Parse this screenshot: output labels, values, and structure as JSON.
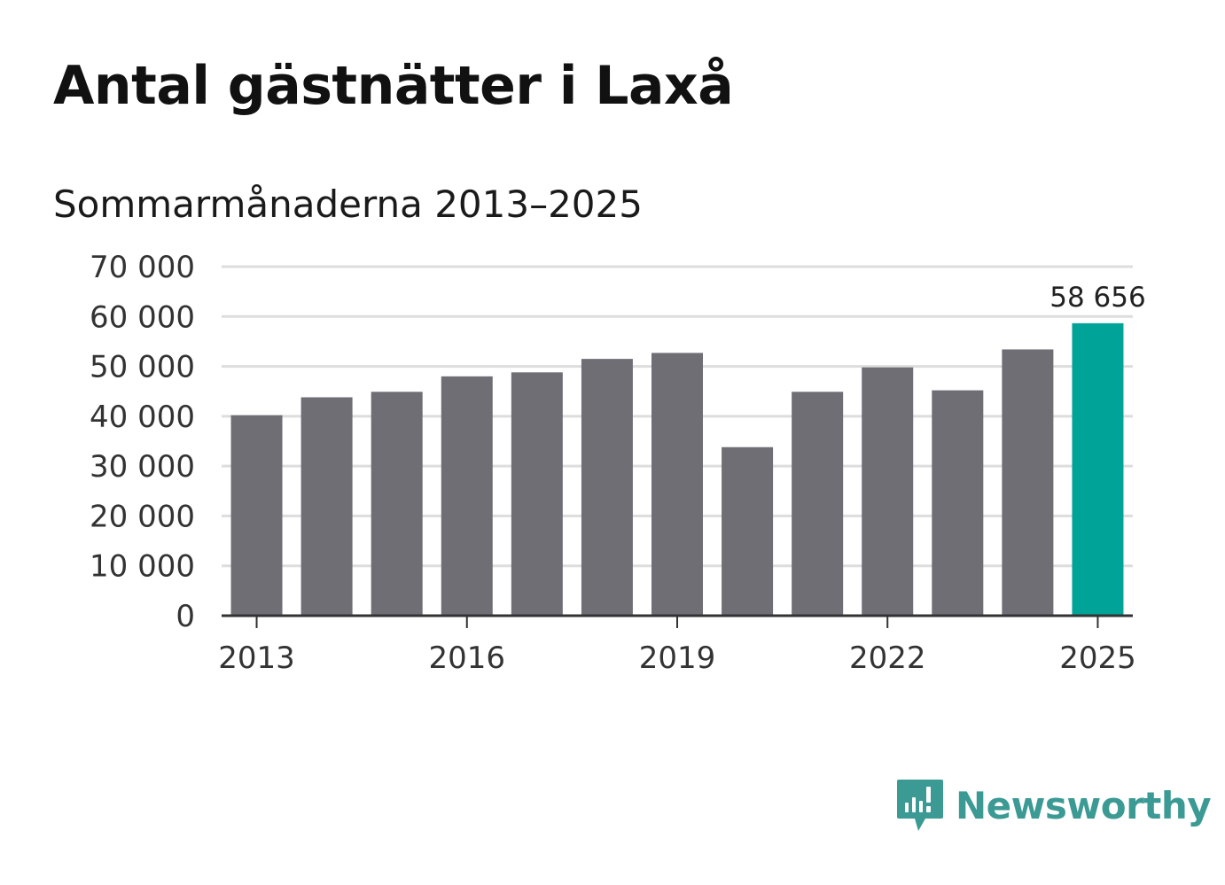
{
  "chart_data": {
    "type": "bar",
    "title": "Antal gästnätter i Laxå",
    "subtitle": "Sommarmånaderna 2013–2025",
    "categories": [
      "2013",
      "2014",
      "2015",
      "2016",
      "2017",
      "2018",
      "2019",
      "2020",
      "2021",
      "2022",
      "2023",
      "2024",
      "2025"
    ],
    "values": [
      40200,
      43800,
      44900,
      48000,
      48800,
      51500,
      52700,
      33800,
      44900,
      49800,
      45200,
      53400,
      58656
    ],
    "highlight_label": "58 656",
    "x_tick_labels": [
      "2013",
      "2016",
      "2019",
      "2022",
      "2025"
    ],
    "y_tick_labels": [
      "0",
      "10 000",
      "20 000",
      "30 000",
      "40 000",
      "50 000",
      "60 000",
      "70 000"
    ],
    "ylim": [
      0,
      70000
    ],
    "grid": true,
    "colors": {
      "bar": "#6f6e75",
      "highlight": "#00a398",
      "grid": "#dddddd",
      "axis": "#333333"
    }
  },
  "brand": {
    "name": "Newsworthy",
    "color": "#3b9a94"
  }
}
